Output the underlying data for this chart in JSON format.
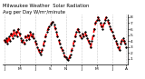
{
  "title": "Milwaukee Weather  Solar Radiation",
  "subtitle": "Avg per Day W/m²/minute",
  "title_fontsize": 3.8,
  "bg_color": "#ffffff",
  "line_color": "#ff0000",
  "dot_color": "#000000",
  "ylim": [
    0,
    8.5
  ],
  "yticks": [
    1,
    2,
    3,
    4,
    5,
    6,
    7,
    8
  ],
  "ylabel_fontsize": 3.2,
  "xlabel_fontsize": 3.2,
  "values": [
    4.2,
    3.8,
    4.5,
    3.5,
    4.8,
    4.0,
    5.2,
    4.5,
    5.8,
    5.0,
    5.5,
    4.8,
    6.0,
    5.2,
    4.5,
    3.8,
    4.2,
    3.5,
    4.8,
    4.2,
    5.0,
    4.3,
    5.5,
    4.8,
    5.2,
    4.5,
    4.0,
    3.5,
    3.0,
    2.5,
    2.0,
    1.8,
    2.5,
    3.2,
    4.0,
    4.8,
    5.5,
    6.0,
    6.5,
    6.8,
    7.0,
    7.2,
    6.8,
    6.2,
    5.5,
    4.8,
    4.2,
    3.5,
    3.0,
    2.5,
    2.0,
    1.5,
    1.2,
    1.0,
    0.8,
    1.2,
    1.8,
    2.5,
    3.2,
    4.0,
    4.8,
    5.5,
    6.0,
    5.5,
    5.0,
    4.5,
    5.2,
    4.8,
    5.5,
    5.0,
    4.5,
    4.0,
    3.5,
    3.0,
    4.0,
    5.0,
    6.0,
    7.0,
    7.5,
    8.0,
    7.5,
    7.0,
    6.5,
    6.0,
    7.0,
    7.5,
    8.0,
    7.5,
    7.0,
    6.5,
    6.0,
    5.5,
    5.0,
    4.5,
    4.0,
    3.5,
    3.0,
    2.5,
    3.5,
    4.0,
    4.5,
    4.0,
    3.5,
    3.0
  ],
  "vline_positions": [
    0,
    13,
    26,
    39,
    52,
    65,
    78,
    91,
    103
  ],
  "tick_labels": [
    "J",
    "M",
    "J",
    "S",
    "N",
    "J",
    "M",
    "J",
    "A"
  ],
  "line_width": 1.2,
  "dash_pattern": [
    3,
    2
  ],
  "markersize": 1.2
}
